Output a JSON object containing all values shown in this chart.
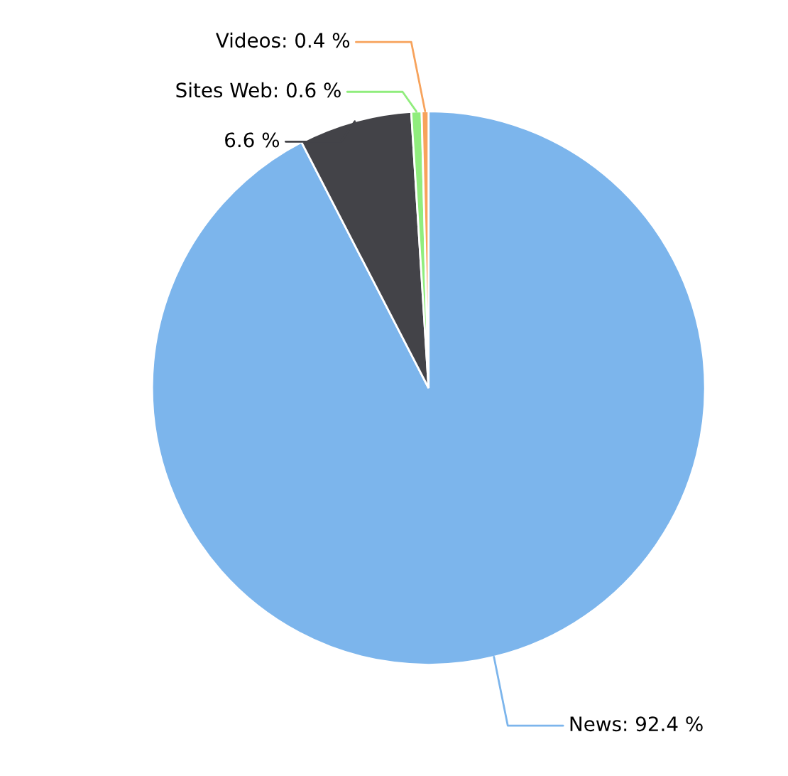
{
  "chart_data": {
    "type": "pie",
    "categories": [
      "News",
      null,
      "Sites Web",
      "Videos"
    ],
    "values": [
      92.4,
      6.6,
      0.6,
      0.4
    ],
    "colors": [
      "#7cb5ec",
      "#434348",
      "#90ed7d",
      "#f7a35c"
    ],
    "value_labels": [
      "92.4 %",
      "6.6 %",
      "0.6 %",
      "0.4 %"
    ]
  }
}
